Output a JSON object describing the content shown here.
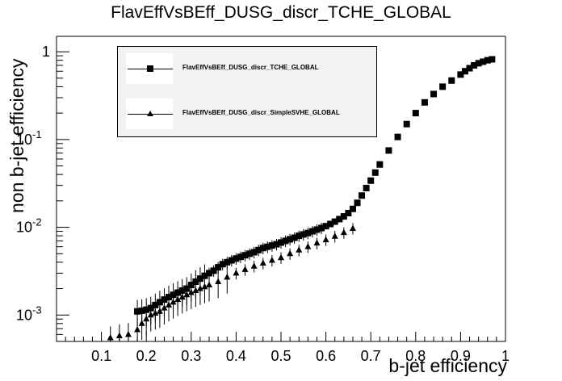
{
  "chart_data": {
    "type": "scatter",
    "title": "FlavEffVsBEff_DUSG_discr_TCHE_GLOBAL",
    "xlabel": "b-jet efficiency",
    "ylabel": "non b-jet efficiency",
    "xlim": [
      0,
      1
    ],
    "ylim": [
      0.0005,
      1.5
    ],
    "yscale": "log",
    "grid": false,
    "legend_placement": "top-left",
    "x_ticks": [
      "0.1",
      "0.2",
      "0.3",
      "0.4",
      "0.5",
      "0.6",
      "0.7",
      "0.8",
      "0.9",
      "1"
    ],
    "y_ticks": [
      {
        "value": 0.001,
        "base": "10",
        "exp": "-3"
      },
      {
        "value": 0.01,
        "base": "10",
        "exp": "-2"
      },
      {
        "value": 0.1,
        "base": "10",
        "exp": "-1"
      },
      {
        "value": 1,
        "label": "1"
      }
    ],
    "series": [
      {
        "name": "FlavEffVsBEff_DUSG_discr_TCHE_GLOBAL",
        "marker": "square",
        "color": "#000000",
        "points": [
          [
            0.18,
            0.0011
          ],
          [
            0.19,
            0.00112
          ],
          [
            0.2,
            0.00115
          ],
          [
            0.21,
            0.0012
          ],
          [
            0.22,
            0.0013
          ],
          [
            0.23,
            0.0014
          ],
          [
            0.24,
            0.0015
          ],
          [
            0.25,
            0.0016
          ],
          [
            0.26,
            0.0017
          ],
          [
            0.27,
            0.0018
          ],
          [
            0.28,
            0.0019
          ],
          [
            0.29,
            0.002
          ],
          [
            0.3,
            0.0022
          ],
          [
            0.31,
            0.0024
          ],
          [
            0.32,
            0.0026
          ],
          [
            0.33,
            0.0028
          ],
          [
            0.34,
            0.003
          ],
          [
            0.35,
            0.0032
          ],
          [
            0.36,
            0.0035
          ],
          [
            0.37,
            0.0038
          ],
          [
            0.38,
            0.004
          ],
          [
            0.39,
            0.0042
          ],
          [
            0.4,
            0.0044
          ],
          [
            0.41,
            0.0046
          ],
          [
            0.42,
            0.0048
          ],
          [
            0.43,
            0.005
          ],
          [
            0.44,
            0.0052
          ],
          [
            0.45,
            0.0055
          ],
          [
            0.46,
            0.0058
          ],
          [
            0.47,
            0.006
          ],
          [
            0.48,
            0.0062
          ],
          [
            0.49,
            0.0064
          ],
          [
            0.5,
            0.0067
          ],
          [
            0.51,
            0.007
          ],
          [
            0.52,
            0.0073
          ],
          [
            0.53,
            0.0076
          ],
          [
            0.54,
            0.008
          ],
          [
            0.55,
            0.0083
          ],
          [
            0.56,
            0.0086
          ],
          [
            0.57,
            0.009
          ],
          [
            0.58,
            0.0094
          ],
          [
            0.59,
            0.0098
          ],
          [
            0.6,
            0.0103
          ],
          [
            0.61,
            0.0109
          ],
          [
            0.62,
            0.0116
          ],
          [
            0.63,
            0.0124
          ],
          [
            0.64,
            0.0133
          ],
          [
            0.65,
            0.0145
          ],
          [
            0.66,
            0.0162
          ],
          [
            0.67,
            0.019
          ],
          [
            0.68,
            0.023
          ],
          [
            0.69,
            0.028
          ],
          [
            0.7,
            0.034
          ],
          [
            0.71,
            0.042
          ],
          [
            0.72,
            0.052
          ],
          [
            0.74,
            0.075
          ],
          [
            0.76,
            0.107
          ],
          [
            0.78,
            0.15
          ],
          [
            0.8,
            0.2
          ],
          [
            0.82,
            0.265
          ],
          [
            0.84,
            0.33
          ],
          [
            0.86,
            0.4
          ],
          [
            0.88,
            0.47
          ],
          [
            0.9,
            0.55
          ],
          [
            0.91,
            0.6
          ],
          [
            0.92,
            0.65
          ],
          [
            0.93,
            0.7
          ],
          [
            0.94,
            0.74
          ],
          [
            0.95,
            0.77
          ],
          [
            0.96,
            0.8
          ],
          [
            0.97,
            0.82
          ]
        ]
      },
      {
        "name": "FlavEffVsBEff_DUSG_discr_SimpleSVHE_GLOBAL",
        "marker": "triangle",
        "color": "#000000",
        "points": [
          [
            0.12,
            0.00055
          ],
          [
            0.14,
            0.00058
          ],
          [
            0.16,
            0.0006
          ],
          [
            0.18,
            0.00068
          ],
          [
            0.19,
            0.0008
          ],
          [
            0.2,
            0.0009
          ],
          [
            0.21,
            0.001
          ],
          [
            0.22,
            0.00105
          ],
          [
            0.23,
            0.0011
          ],
          [
            0.24,
            0.0012
          ],
          [
            0.25,
            0.0013
          ],
          [
            0.26,
            0.0014
          ],
          [
            0.27,
            0.0015
          ],
          [
            0.28,
            0.0016
          ],
          [
            0.29,
            0.0017
          ],
          [
            0.3,
            0.0018
          ],
          [
            0.31,
            0.0019
          ],
          [
            0.32,
            0.002
          ],
          [
            0.33,
            0.0021
          ],
          [
            0.34,
            0.0022
          ],
          [
            0.36,
            0.0024
          ],
          [
            0.38,
            0.0027
          ],
          [
            0.4,
            0.003
          ],
          [
            0.42,
            0.0033
          ],
          [
            0.44,
            0.0036
          ],
          [
            0.46,
            0.0039
          ],
          [
            0.48,
            0.0042
          ],
          [
            0.5,
            0.0045
          ],
          [
            0.52,
            0.005
          ],
          [
            0.54,
            0.0055
          ],
          [
            0.56,
            0.006
          ],
          [
            0.58,
            0.0066
          ],
          [
            0.6,
            0.0072
          ],
          [
            0.62,
            0.0079
          ],
          [
            0.64,
            0.0087
          ],
          [
            0.66,
            0.0097
          ]
        ]
      }
    ]
  }
}
